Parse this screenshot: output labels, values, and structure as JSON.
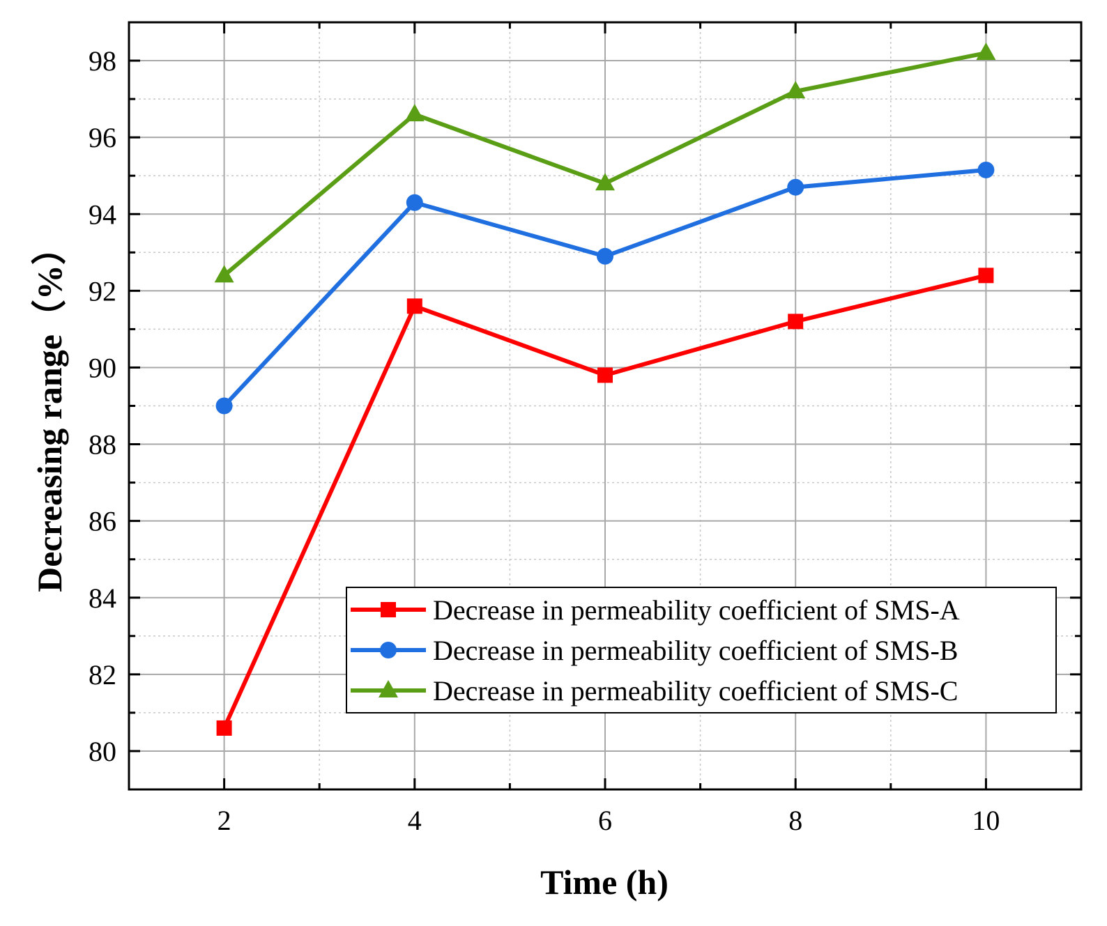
{
  "chart_data": {
    "type": "line",
    "title": "",
    "xlabel": "Time (h)",
    "ylabel": "Decreasing range（%）",
    "x": [
      2,
      4,
      6,
      8,
      10
    ],
    "xlim": [
      1,
      11
    ],
    "ylim": [
      79,
      99
    ],
    "xticks": [
      2,
      4,
      6,
      8,
      10
    ],
    "yticks": [
      80,
      82,
      84,
      86,
      88,
      90,
      92,
      94,
      96,
      98
    ],
    "grid": true,
    "legend_position": "bottom-right",
    "series": [
      {
        "name": "Decrease in permeability coefficient of SMS-A",
        "color": "#ff0000",
        "marker": "square",
        "values": [
          80.6,
          91.6,
          89.8,
          91.2,
          92.4
        ]
      },
      {
        "name": "Decrease in permeability coefficient of SMS-B",
        "color": "#1f6fe0",
        "marker": "circle",
        "values": [
          89.0,
          94.3,
          92.9,
          94.7,
          95.15
        ]
      },
      {
        "name": "Decrease in permeability coefficient of SMS-C",
        "color": "#5a9e15",
        "marker": "triangle",
        "values": [
          92.4,
          96.6,
          94.8,
          97.2,
          98.2
        ]
      }
    ]
  }
}
